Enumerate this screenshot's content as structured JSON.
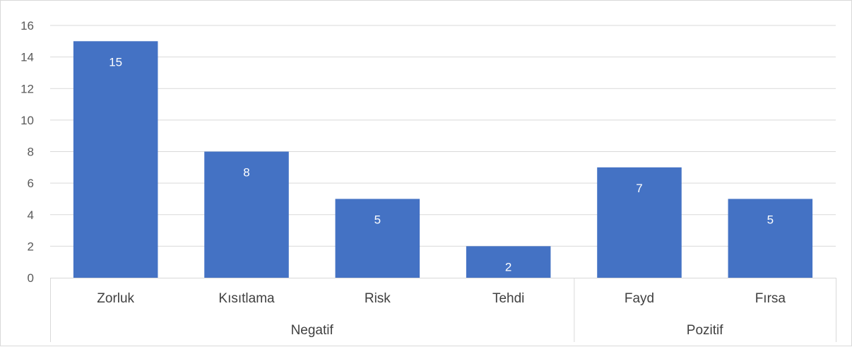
{
  "chart_data": {
    "type": "bar",
    "title": "",
    "xlabel": "",
    "ylabel": "",
    "ylim": [
      0,
      16
    ],
    "yticks": [
      0,
      2,
      4,
      6,
      8,
      10,
      12,
      14,
      16
    ],
    "grid": true,
    "legend": "none",
    "bar_color": "#4472C4",
    "categories": [
      "Zorluk",
      "Kısıtlama",
      "Risk",
      "Tehdi",
      "Fayd",
      "Fırsa"
    ],
    "values": [
      15,
      8,
      5,
      2,
      7,
      5
    ],
    "groups": [
      {
        "label": "Negatif",
        "categories": [
          "Zorluk",
          "Kısıtlama",
          "Risk",
          "Tehdi"
        ]
      },
      {
        "label": "Pozitif",
        "categories": [
          "Fayd",
          "Fırsa"
        ]
      }
    ]
  }
}
